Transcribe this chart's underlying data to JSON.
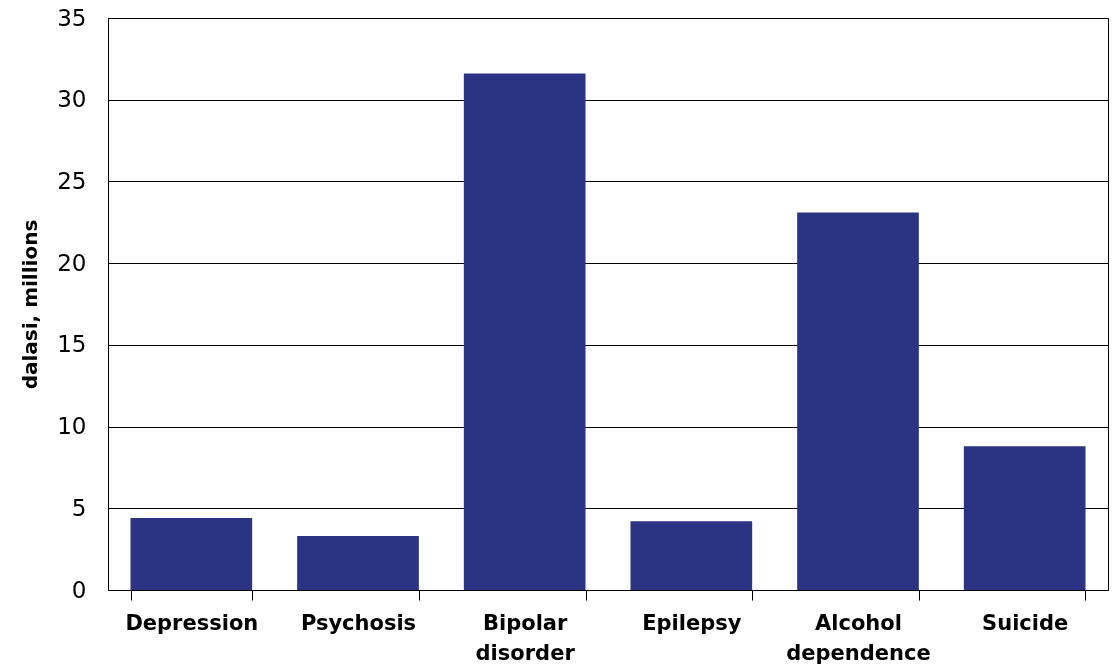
{
  "chart_data": {
    "type": "bar",
    "ylabel": "dalasi, millions",
    "categories": [
      "Depression",
      "Psychosis",
      "Bipolar disorder",
      "Epilepsy",
      "Alcohol dependence",
      "Suicide"
    ],
    "values": [
      4.4,
      3.3,
      31.6,
      4.2,
      23.1,
      8.8
    ],
    "color": "#2b3383",
    "ylim": [
      0,
      35
    ],
    "yticks": [
      0,
      5,
      10,
      15,
      20,
      25,
      30,
      35
    ],
    "grid": "y"
  }
}
